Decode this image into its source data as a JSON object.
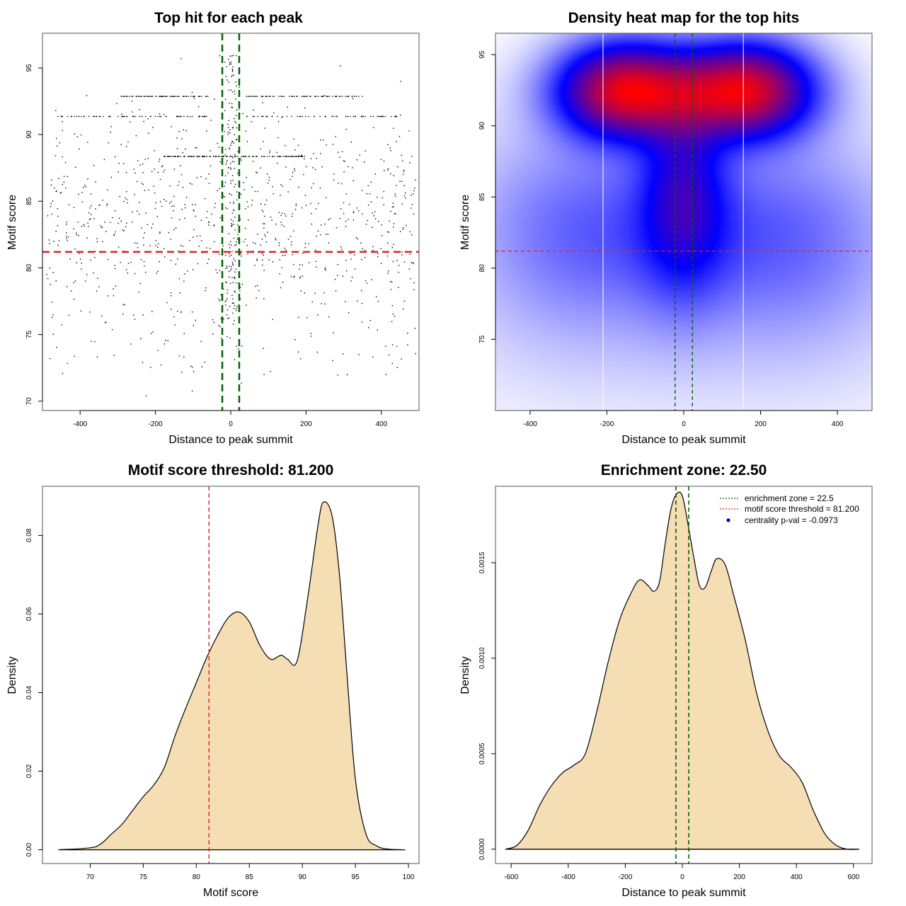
{
  "chart_data": [
    {
      "id": "scatter",
      "type": "scatter",
      "title": "Top hit for each peak",
      "xlabel": "Distance to peak summit",
      "ylabel": "Motif score",
      "xlim": [
        -500,
        500
      ],
      "ylim": [
        69.3,
        97.6
      ],
      "xticks": [
        -400,
        -200,
        0,
        200,
        400
      ],
      "yticks": [
        70,
        75,
        80,
        85,
        90,
        95
      ],
      "tick_labels_x": [
        "-400",
        "-200",
        "0",
        "200",
        "400"
      ],
      "tick_labels_y": [
        "70",
        "75",
        "80",
        "85",
        "90",
        "95"
      ],
      "point_color": "#000000",
      "score_threshold": 81.2,
      "enrichment_zone": 22.5,
      "threshold_color": "#dd2222",
      "zone_color": "#006400",
      "point_model": {
        "count": 1500,
        "bands": [
          {
            "y": 92.9,
            "x_ranges": [
              [
                -300,
                -60
              ],
              [
                40,
                350
              ]
            ]
          },
          {
            "y": 91.4,
            "x_ranges": [
              [
                -470,
                -60
              ],
              [
                40,
                440
              ]
            ]
          },
          {
            "y": 88.4,
            "x_ranges": [
              [
                -180,
                200
              ]
            ]
          }
        ]
      }
    },
    {
      "id": "heatmap",
      "type": "heatmap",
      "title": "Density heat map for the top hits",
      "xlabel": "Distance to peak summit",
      "ylabel": "Motif score",
      "xlim": [
        -490,
        490
      ],
      "ylim": [
        70,
        96.5
      ],
      "xticks": [
        -400,
        -200,
        0,
        200,
        400
      ],
      "yticks": [
        75,
        80,
        85,
        90,
        95
      ],
      "tick_labels_x": [
        "-400",
        "-200",
        "0",
        "200",
        "400"
      ],
      "tick_labels_y": [
        "75",
        "80",
        "85",
        "90",
        "95"
      ],
      "colormap": [
        "#ffffff",
        "#0000ff",
        "#ff0000"
      ],
      "score_threshold": 81.2,
      "enrichment_zone": 22.5,
      "white_gridlines_x": [
        -210,
        155
      ],
      "kernels": [
        {
          "x": -160,
          "y": 92.5,
          "sx": 110,
          "sy": 2.2,
          "w": 1.0
        },
        {
          "x": 170,
          "y": 92.5,
          "sx": 110,
          "sy": 2.2,
          "w": 1.0
        },
        {
          "x": 0,
          "y": 92.3,
          "sx": 170,
          "sy": 2.0,
          "w": 0.45
        },
        {
          "x": 0,
          "y": 85.5,
          "sx": 75,
          "sy": 4.5,
          "w": 0.45
        },
        {
          "x": 0,
          "y": 82.5,
          "sx": 260,
          "sy": 4.2,
          "w": 0.25
        },
        {
          "x": -330,
          "y": 83,
          "sx": 170,
          "sy": 5.0,
          "w": 0.12
        },
        {
          "x": 330,
          "y": 82,
          "sx": 170,
          "sy": 5.0,
          "w": 0.12
        },
        {
          "x": 0,
          "y": 75,
          "sx": 420,
          "sy": 4.0,
          "w": 0.04
        }
      ]
    },
    {
      "id": "score_density",
      "type": "area",
      "title": "Motif score threshold: 81.200",
      "xlabel": "Motif score",
      "ylabel": "Density",
      "xlim": [
        65.5,
        101
      ],
      "ylim": [
        -0.0035,
        0.0925
      ],
      "xticks": [
        70,
        75,
        80,
        85,
        90,
        95,
        100
      ],
      "yticks": [
        0.0,
        0.02,
        0.04,
        0.06,
        0.08
      ],
      "tick_labels_x": [
        "70",
        "75",
        "80",
        "85",
        "90",
        "95",
        "100"
      ],
      "tick_labels_y": [
        "0.00",
        "0.02",
        "0.04",
        "0.06",
        "0.08"
      ],
      "fill_color": "#f5deb3",
      "threshold": 81.2,
      "threshold_color": "#dd2222",
      "x": [
        67,
        70,
        71,
        72,
        73,
        74,
        75,
        76,
        77,
        78,
        79,
        80,
        81,
        82,
        83,
        84,
        85,
        86,
        87,
        88,
        88.6,
        89.5,
        90.5,
        91.5,
        92,
        92.8,
        93.5,
        94.2,
        95,
        96,
        97,
        98,
        99.7
      ],
      "y": [
        0.0,
        0.0005,
        0.0015,
        0.004,
        0.0065,
        0.01,
        0.0135,
        0.0165,
        0.021,
        0.029,
        0.036,
        0.0425,
        0.049,
        0.0545,
        0.059,
        0.0605,
        0.058,
        0.052,
        0.0485,
        0.0495,
        0.0485,
        0.048,
        0.064,
        0.083,
        0.0885,
        0.085,
        0.07,
        0.045,
        0.018,
        0.004,
        0.001,
        0.0002,
        0.0
      ]
    },
    {
      "id": "distance_density",
      "type": "area",
      "title": "Enrichment zone: 22.50",
      "xlabel": "Distance to peak summit",
      "ylabel": "Density",
      "xlim": [
        -655,
        665
      ],
      "ylim": [
        -7.5e-05,
        0.0019
      ],
      "xticks": [
        -600,
        -400,
        -200,
        0,
        200,
        400,
        600
      ],
      "yticks": [
        0.0,
        0.0005,
        0.001,
        0.0015
      ],
      "tick_labels_x": [
        "-600",
        "-400",
        "-200",
        "0",
        "200",
        "400",
        "600"
      ],
      "tick_labels_y": [
        "0.0000",
        "0.0005",
        "0.0010",
        "0.0015"
      ],
      "fill_color": "#f5deb3",
      "enrichment_zone": 22.5,
      "zone_color": "#006400",
      "x": [
        -620,
        -580,
        -540,
        -500,
        -460,
        -420,
        -380,
        -340,
        -300,
        -260,
        -220,
        -180,
        -150,
        -120,
        -100,
        -80,
        -60,
        -40,
        -20,
        0,
        20,
        40,
        60,
        80,
        100,
        120,
        150,
        180,
        220,
        260,
        300,
        340,
        380,
        420,
        460,
        500,
        540,
        580,
        620
      ],
      "y": [
        0.0,
        2e-05,
        0.0001,
        0.00023,
        0.00033,
        0.0004,
        0.00044,
        0.0005,
        0.00072,
        0.00098,
        0.0012,
        0.00134,
        0.00141,
        0.00138,
        0.00135,
        0.0014,
        0.0016,
        0.00178,
        0.00186,
        0.00185,
        0.0017,
        0.00153,
        0.00138,
        0.00137,
        0.00145,
        0.00152,
        0.00149,
        0.00133,
        0.0011,
        0.00082,
        0.00062,
        0.00049,
        0.00043,
        0.00035,
        0.0002,
        8e-05,
        2e-05,
        0.0,
        0.0
      ]
    }
  ],
  "legend": {
    "items": [
      {
        "label": "enrichment zone = 22.5",
        "color": "#006400",
        "kind": "line"
      },
      {
        "label": "motif score threshold = 81.200",
        "color": "#dd2222",
        "kind": "line"
      },
      {
        "label": "centrality p-val = -0.0973",
        "color": "#0000cc",
        "kind": "point"
      }
    ]
  }
}
